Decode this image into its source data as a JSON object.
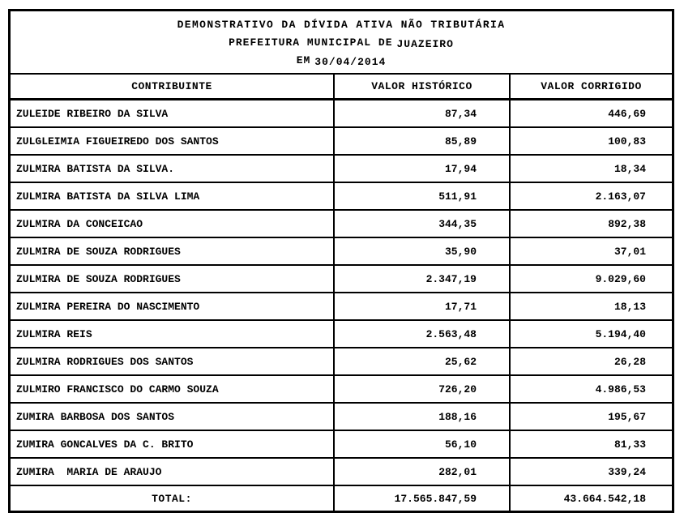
{
  "document": {
    "title_line1": "DEMONSTRATIVO DA DÍVIDA ATIVA NÃO TRIBUTÁRIA",
    "title_line2_label": "PREFEITURA MUNICIPAL DE",
    "title_line2_value": "JUAZEIRO",
    "title_line3_label": "EM",
    "title_line3_value": "30/04/2014"
  },
  "table": {
    "columns": {
      "contribuinte": "CONTRIBUINTE",
      "valor_historico": "VALOR HISTÓRICO",
      "valor_corrigido": "VALOR CORRIGIDO"
    },
    "rows": [
      {
        "contribuinte": "ZULEIDE RIBEIRO DA SILVA",
        "valor_historico": "87,34",
        "valor_corrigido": "446,69"
      },
      {
        "contribuinte": "ZULGLEIMIA FIGUEIREDO DOS SANTOS",
        "valor_historico": "85,89",
        "valor_corrigido": "100,83"
      },
      {
        "contribuinte": "ZULMIRA BATISTA DA SILVA.",
        "valor_historico": "17,94",
        "valor_corrigido": "18,34"
      },
      {
        "contribuinte": "ZULMIRA BATISTA DA SILVA LIMA",
        "valor_historico": "511,91",
        "valor_corrigido": "2.163,07"
      },
      {
        "contribuinte": "ZULMIRA DA CONCEICAO",
        "valor_historico": "344,35",
        "valor_corrigido": "892,38"
      },
      {
        "contribuinte": "ZULMIRA DE SOUZA RODRIGUES",
        "valor_historico": "35,90",
        "valor_corrigido": "37,01"
      },
      {
        "contribuinte": "ZULMIRA DE SOUZA RODRIGUES",
        "valor_historico": "2.347,19",
        "valor_corrigido": "9.029,60"
      },
      {
        "contribuinte": "ZULMIRA PEREIRA DO NASCIMENTO",
        "valor_historico": "17,71",
        "valor_corrigido": "18,13"
      },
      {
        "contribuinte": "ZULMIRA REIS",
        "valor_historico": "2.563,48",
        "valor_corrigido": "5.194,40"
      },
      {
        "contribuinte": "ZULMIRA RODRIGUES DOS SANTOS",
        "valor_historico": "25,62",
        "valor_corrigido": "26,28"
      },
      {
        "contribuinte": "ZULMIRO FRANCISCO DO CARMO SOUZA",
        "valor_historico": "726,20",
        "valor_corrigido": "4.986,53"
      },
      {
        "contribuinte": "ZUMIRA BARBOSA DOS SANTOS",
        "valor_historico": "188,16",
        "valor_corrigido": "195,67"
      },
      {
        "contribuinte": "ZUMIRA GONCALVES DA C. BRITO",
        "valor_historico": "56,10",
        "valor_corrigido": "81,33"
      },
      {
        "contribuinte": "ZUMIRA  MARIA DE ARAUJO",
        "valor_historico": "282,01",
        "valor_corrigido": "339,24"
      }
    ],
    "total": {
      "label": "TOTAL:",
      "valor_historico": "17.565.847,59",
      "valor_corrigido": "43.664.542,18"
    }
  },
  "colors": {
    "border": "#000000",
    "text": "#000000",
    "background": "#ffffff"
  }
}
